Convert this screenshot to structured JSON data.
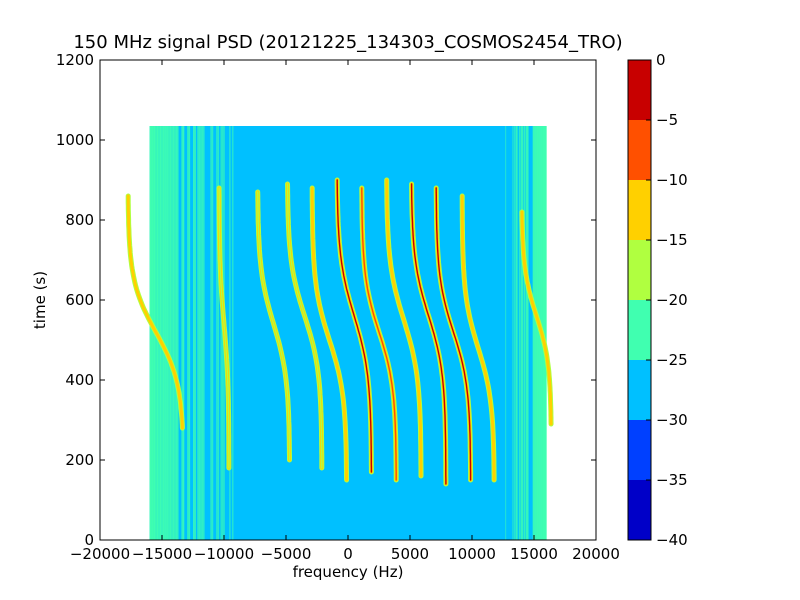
{
  "chart_data": {
    "type": "heatmap",
    "title": "150 MHz signal PSD (20121225_134303_COSMOS2454_TRO)",
    "xlabel": "frequency (Hz)",
    "ylabel": "time (s)",
    "xlim": [
      -20000,
      20000
    ],
    "ylim": [
      0,
      1200
    ],
    "xticks": [
      -20000,
      -15000,
      -10000,
      -5000,
      0,
      5000,
      10000,
      15000,
      20000
    ],
    "xtick_labels": [
      "−20000",
      "−15000",
      "−10000",
      "−5000",
      "0",
      "5000",
      "10000",
      "15000",
      "20000"
    ],
    "yticks": [
      0,
      200,
      400,
      600,
      800,
      1000,
      1200
    ],
    "ytick_labels": [
      "0",
      "200",
      "400",
      "600",
      "800",
      "1000",
      "1200"
    ],
    "data_extent": {
      "x": [
        -16000,
        16000
      ],
      "y": [
        0,
        1035
      ]
    },
    "background_level": -27.5,
    "colorbar": {
      "levels": [
        -40,
        -35,
        -30,
        -25,
        -20,
        -15,
        -10,
        -5,
        0
      ],
      "tick_labels": [
        "−40",
        "−35",
        "−30",
        "−25",
        "−20",
        "−15",
        "−10",
        "−5",
        "0"
      ],
      "colors": [
        "#0000c8",
        "#0040ff",
        "#00c0ff",
        "#40ffb0",
        "#b0ff40",
        "#ffd000",
        "#ff5000",
        "#c80000"
      ]
    },
    "signal_traces": [
      {
        "center_freq": -15500,
        "center_time": 520,
        "span_freq": 4500,
        "span_time": 280,
        "peak_level": -14,
        "time_range": [
          280,
          860
        ]
      },
      {
        "center_freq": -10000,
        "center_time": 540,
        "span_freq": 800,
        "span_time": 320,
        "peak_level": -20,
        "time_range": [
          180,
          880
        ]
      },
      {
        "center_freq": -6000,
        "center_time": 540,
        "span_freq": 2600,
        "span_time": 300,
        "peak_level": -19,
        "time_range": [
          200,
          870
        ]
      },
      {
        "center_freq": -3500,
        "center_time": 560,
        "span_freq": 2800,
        "span_time": 300,
        "peak_level": -17,
        "time_range": [
          180,
          890
        ]
      },
      {
        "center_freq": -1500,
        "center_time": 500,
        "span_freq": 2800,
        "span_time": 300,
        "peak_level": -14,
        "time_range": [
          150,
          880
        ]
      },
      {
        "center_freq": 500,
        "center_time": 560,
        "span_freq": 2800,
        "span_time": 320,
        "peak_level": -3,
        "time_range": [
          170,
          900
        ]
      },
      {
        "center_freq": 2500,
        "center_time": 520,
        "span_freq": 2800,
        "span_time": 300,
        "peak_level": -8,
        "time_range": [
          150,
          880
        ]
      },
      {
        "center_freq": 4500,
        "center_time": 550,
        "span_freq": 2800,
        "span_time": 310,
        "peak_level": -12,
        "time_range": [
          160,
          900
        ]
      },
      {
        "center_freq": 6500,
        "center_time": 560,
        "span_freq": 2800,
        "span_time": 310,
        "peak_level": -2,
        "time_range": [
          140,
          890
        ]
      },
      {
        "center_freq": 8500,
        "center_time": 520,
        "span_freq": 2800,
        "span_time": 300,
        "peak_level": -4,
        "time_range": [
          150,
          880
        ]
      },
      {
        "center_freq": 10500,
        "center_time": 480,
        "span_freq": 2600,
        "span_time": 290,
        "peak_level": -13,
        "time_range": [
          150,
          860
        ]
      },
      {
        "center_freq": 15200,
        "center_time": 560,
        "span_freq": 2400,
        "span_time": 260,
        "peak_level": -14,
        "time_range": [
          290,
          820
        ]
      }
    ]
  }
}
